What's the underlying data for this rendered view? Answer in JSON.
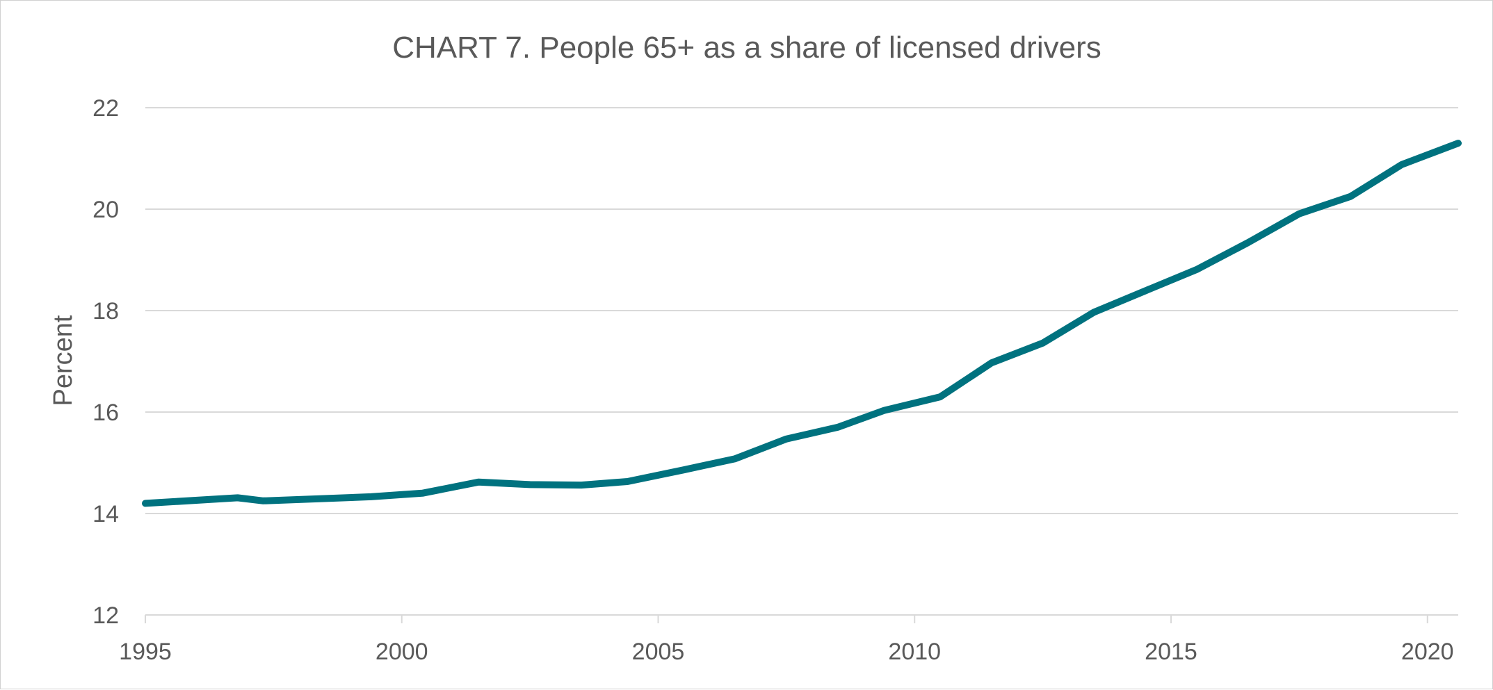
{
  "chart_data": {
    "type": "line",
    "title": "CHART 7. People 65+ as a share of licensed drivers",
    "xlabel": "",
    "ylabel": "Percent",
    "xlim": [
      1995,
      2020.6
    ],
    "ylim": [
      12,
      22
    ],
    "x_ticks": [
      1995,
      2000,
      2005,
      2010,
      2015,
      2020
    ],
    "y_ticks": [
      12,
      14,
      16,
      18,
      20,
      22
    ],
    "grid": true,
    "legend": "none",
    "series": [
      {
        "color": "#00727f",
        "points": [
          [
            1995.0,
            14.2
          ],
          [
            1996.8,
            14.31
          ],
          [
            1997.3,
            14.25
          ],
          [
            1999.4,
            14.33
          ],
          [
            2000.4,
            14.4
          ],
          [
            2001.5,
            14.62
          ],
          [
            2002.5,
            14.57
          ],
          [
            2003.5,
            14.56
          ],
          [
            2004.4,
            14.63
          ],
          [
            2005.5,
            14.86
          ],
          [
            2006.5,
            15.08
          ],
          [
            2007.5,
            15.47
          ],
          [
            2008.5,
            15.7
          ],
          [
            2009.4,
            16.03
          ],
          [
            2010.5,
            16.3
          ],
          [
            2011.5,
            16.97
          ],
          [
            2012.5,
            17.36
          ],
          [
            2013.5,
            17.97
          ],
          [
            2014.5,
            18.39
          ],
          [
            2015.5,
            18.81
          ],
          [
            2016.5,
            19.34
          ],
          [
            2017.5,
            19.91
          ],
          [
            2018.5,
            20.25
          ],
          [
            2019.5,
            20.88
          ],
          [
            2020.6,
            21.3
          ]
        ]
      }
    ]
  }
}
